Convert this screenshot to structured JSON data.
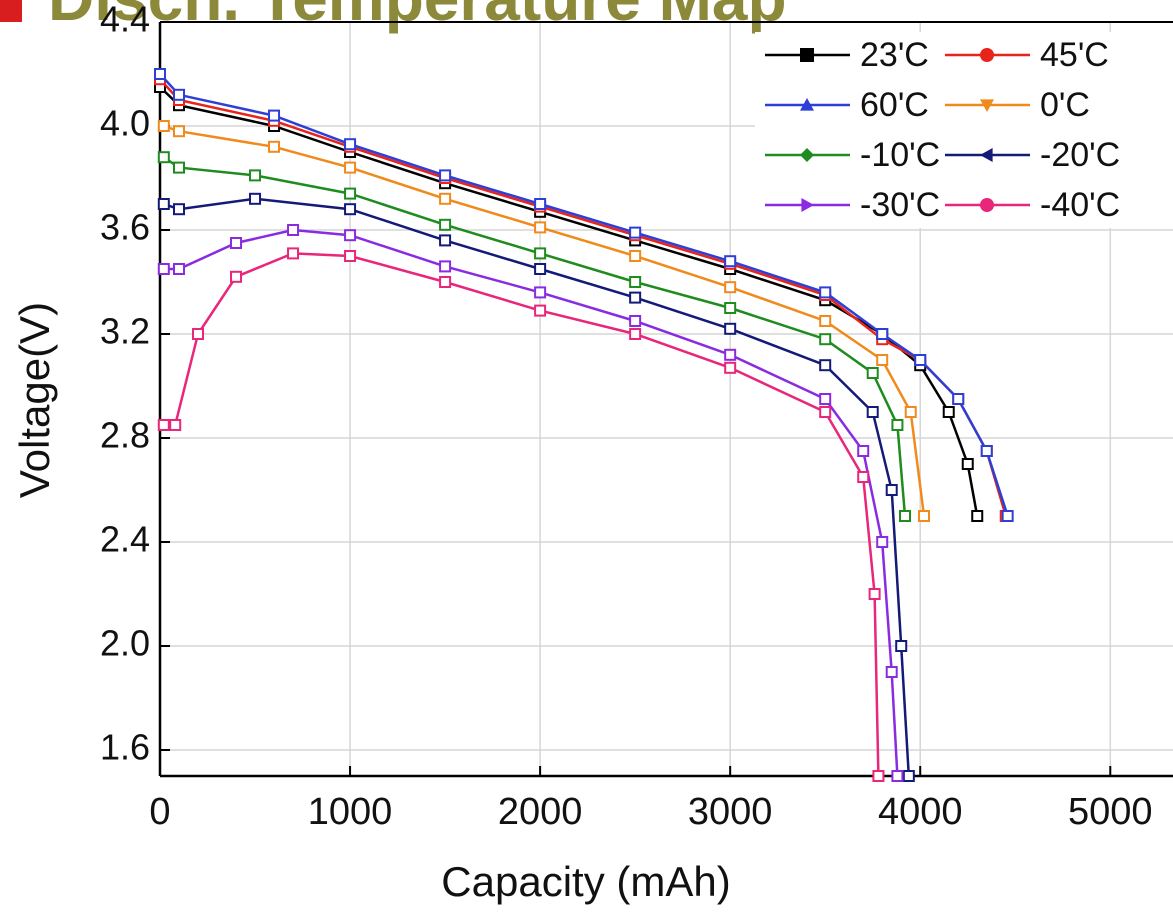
{
  "chart_data": {
    "type": "line",
    "title": "Disch. Temperature Map",
    "x_label": "Capacity (mAh)",
    "y_label": "Voltage(V)",
    "xlim": [
      0,
      5330
    ],
    "ylim": [
      1.5,
      4.4
    ],
    "xticks": [
      0,
      1000,
      2000,
      3000,
      4000,
      5000
    ],
    "yticks": [
      1.6,
      {
        "value": 2,
        "label": "2.0"
      },
      2.4,
      2.8,
      3.2,
      3.6,
      {
        "value": 4,
        "label": "4.0"
      },
      4.4
    ],
    "grid": true,
    "legend": "top-right",
    "series": [
      {
        "name": "23'C",
        "color": "#000000",
        "marker": "square",
        "x": [
          0,
          100,
          600,
          1000,
          1500,
          2000,
          2500,
          3000,
          3500,
          3800,
          4000,
          4150,
          4250,
          4300
        ],
        "values": [
          4.15,
          4.08,
          4.0,
          3.9,
          3.78,
          3.67,
          3.56,
          3.45,
          3.33,
          3.2,
          3.08,
          2.9,
          2.7,
          2.5
        ]
      },
      {
        "name": "45'C",
        "color": "#e8231c",
        "marker": "circle",
        "x": [
          0,
          100,
          600,
          1000,
          1500,
          2000,
          2500,
          3000,
          3500,
          3800,
          4000,
          4200,
          4350,
          4450
        ],
        "values": [
          4.18,
          4.1,
          4.02,
          3.92,
          3.8,
          3.69,
          3.58,
          3.47,
          3.35,
          3.18,
          3.1,
          2.95,
          2.75,
          2.5
        ]
      },
      {
        "name": "60'C",
        "color": "#2e3fd6",
        "marker": "triangle-up",
        "x": [
          0,
          100,
          600,
          1000,
          1500,
          2000,
          2500,
          3000,
          3500,
          3800,
          4000,
          4200,
          4350,
          4460
        ],
        "values": [
          4.2,
          4.12,
          4.04,
          3.93,
          3.81,
          3.7,
          3.59,
          3.48,
          3.36,
          3.2,
          3.1,
          2.95,
          2.75,
          2.5
        ]
      },
      {
        "name": "0'C",
        "color": "#f08a1c",
        "marker": "triangle-down",
        "x": [
          20,
          100,
          600,
          1000,
          1500,
          2000,
          2500,
          3000,
          3500,
          3800,
          3950,
          4020
        ],
        "values": [
          4.0,
          3.98,
          3.92,
          3.84,
          3.72,
          3.61,
          3.5,
          3.38,
          3.25,
          3.1,
          2.9,
          2.5
        ]
      },
      {
        "name": "-10'C",
        "color": "#1e8c1e",
        "marker": "diamond",
        "x": [
          20,
          100,
          500,
          1000,
          1500,
          2000,
          2500,
          3000,
          3500,
          3750,
          3880,
          3920
        ],
        "values": [
          3.88,
          3.84,
          3.81,
          3.74,
          3.62,
          3.51,
          3.4,
          3.3,
          3.18,
          3.05,
          2.85,
          2.5
        ]
      },
      {
        "name": "-20'C",
        "color": "#141a78",
        "marker": "triangle-left",
        "x": [
          20,
          100,
          500,
          1000,
          1500,
          2000,
          2500,
          3000,
          3500,
          3750,
          3850,
          3900,
          3940
        ],
        "values": [
          3.7,
          3.68,
          3.72,
          3.68,
          3.56,
          3.45,
          3.34,
          3.22,
          3.08,
          2.9,
          2.6,
          2.0,
          1.5
        ]
      },
      {
        "name": "-30'C",
        "color": "#8a2be2",
        "marker": "triangle-right",
        "x": [
          20,
          100,
          400,
          700,
          1000,
          1500,
          2000,
          2500,
          3000,
          3500,
          3700,
          3800,
          3850,
          3880
        ],
        "values": [
          3.45,
          3.45,
          3.55,
          3.6,
          3.58,
          3.46,
          3.36,
          3.25,
          3.12,
          2.95,
          2.75,
          2.4,
          1.9,
          1.5
        ]
      },
      {
        "name": "-40'C",
        "color": "#e8267a",
        "marker": "circle",
        "x": [
          20,
          80,
          200,
          400,
          700,
          1000,
          1500,
          2000,
          2500,
          3000,
          3500,
          3700,
          3760,
          3780
        ],
        "values": [
          2.85,
          2.85,
          3.2,
          3.42,
          3.51,
          3.5,
          3.4,
          3.29,
          3.2,
          3.07,
          2.9,
          2.65,
          2.2,
          1.5
        ]
      }
    ]
  }
}
